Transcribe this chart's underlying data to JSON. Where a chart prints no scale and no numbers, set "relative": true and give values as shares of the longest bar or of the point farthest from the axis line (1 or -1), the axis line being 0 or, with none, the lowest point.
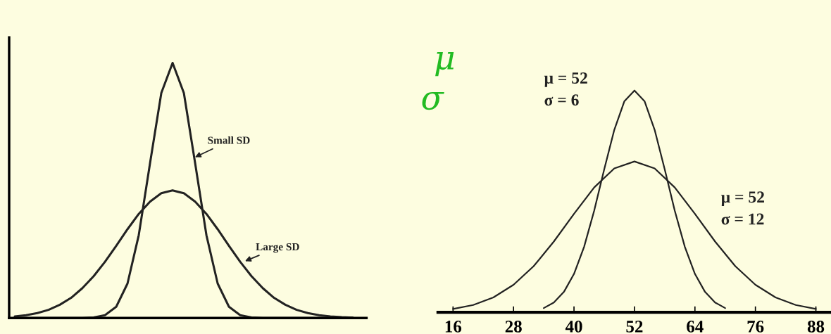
{
  "chart_data": [
    {
      "type": "line",
      "relative": true,
      "tick_labels": false,
      "categories": [
        null,
        null,
        null,
        null,
        null,
        null,
        null,
        null,
        null,
        null,
        null,
        null,
        null,
        null,
        null,
        null,
        null,
        null,
        null,
        null,
        null,
        null,
        null,
        null,
        null,
        null,
        null,
        null,
        null,
        null,
        null
      ],
      "series": [
        {
          "name": "Small SD",
          "color": "#222222",
          "values": [
            0,
            0,
            0,
            0,
            0,
            0,
            0,
            0.002,
            0.011,
            0.044,
            0.135,
            0.325,
            0.607,
            0.882,
            1,
            0.882,
            0.607,
            0.325,
            0.135,
            0.044,
            0.011,
            0.002,
            0,
            0,
            0,
            0,
            0,
            0,
            0,
            0,
            0
          ]
        },
        {
          "name": "Large SD",
          "color": "#222222",
          "values": [
            0.006,
            0.011,
            0.019,
            0.032,
            0.052,
            0.079,
            0.117,
            0.164,
            0.22,
            0.283,
            0.348,
            0.408,
            0.456,
            0.489,
            0.5,
            0.489,
            0.456,
            0.408,
            0.348,
            0.283,
            0.22,
            0.164,
            0.117,
            0.079,
            0.052,
            0.032,
            0.019,
            0.011,
            0.006,
            0.003,
            0.001
          ]
        }
      ]
    },
    {
      "type": "line",
      "relative": true,
      "tick_labels": "x",
      "xlim": [
        13,
        91
      ],
      "xticks": [
        16,
        28,
        40,
        52,
        64,
        76,
        88
      ],
      "annotations": [
        "μ",
        "σ"
      ],
      "series": [
        {
          "name": "μ = 52\nσ = 6",
          "color": "#222222",
          "x": [
            34,
            36,
            38,
            40,
            42,
            44,
            46,
            48,
            50,
            52,
            54,
            56,
            58,
            60,
            62,
            64,
            66,
            68,
            70
          ],
          "values": [
            0.019,
            0.044,
            0.092,
            0.173,
            0.295,
            0.458,
            0.645,
            0.823,
            0.952,
            1,
            0.952,
            0.823,
            0.645,
            0.458,
            0.295,
            0.173,
            0.092,
            0.044,
            0.019
          ]
        },
        {
          "name": "μ = 52\nσ = 12",
          "color": "#222222",
          "x": [
            16,
            20,
            24,
            28,
            32,
            36,
            40,
            44,
            48,
            52,
            56,
            60,
            64,
            68,
            72,
            76,
            80,
            84,
            88
          ],
          "values": [
            0.015,
            0.033,
            0.067,
            0.124,
            0.208,
            0.319,
            0.444,
            0.563,
            0.649,
            0.68,
            0.649,
            0.563,
            0.444,
            0.319,
            0.208,
            0.124,
            0.067,
            0.033,
            0.015
          ]
        }
      ]
    }
  ]
}
